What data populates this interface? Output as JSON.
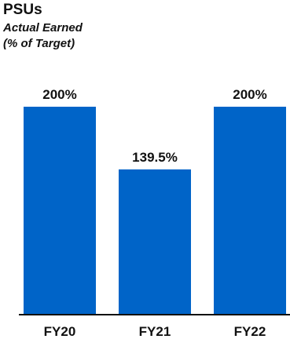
{
  "chart_data": {
    "type": "bar",
    "title": "PSUs",
    "subtitle_lines": [
      "Actual Earned",
      "(% of Target)"
    ],
    "categories": [
      "FY20",
      "FY21",
      "FY22"
    ],
    "values": [
      200,
      139.5,
      200
    ],
    "value_labels": [
      "200%",
      "139.5%",
      "200%"
    ],
    "ylim": [
      0,
      200
    ],
    "grid": false,
    "legend": "none",
    "bar_color": "#0064c8",
    "axis_color": "#111111"
  }
}
